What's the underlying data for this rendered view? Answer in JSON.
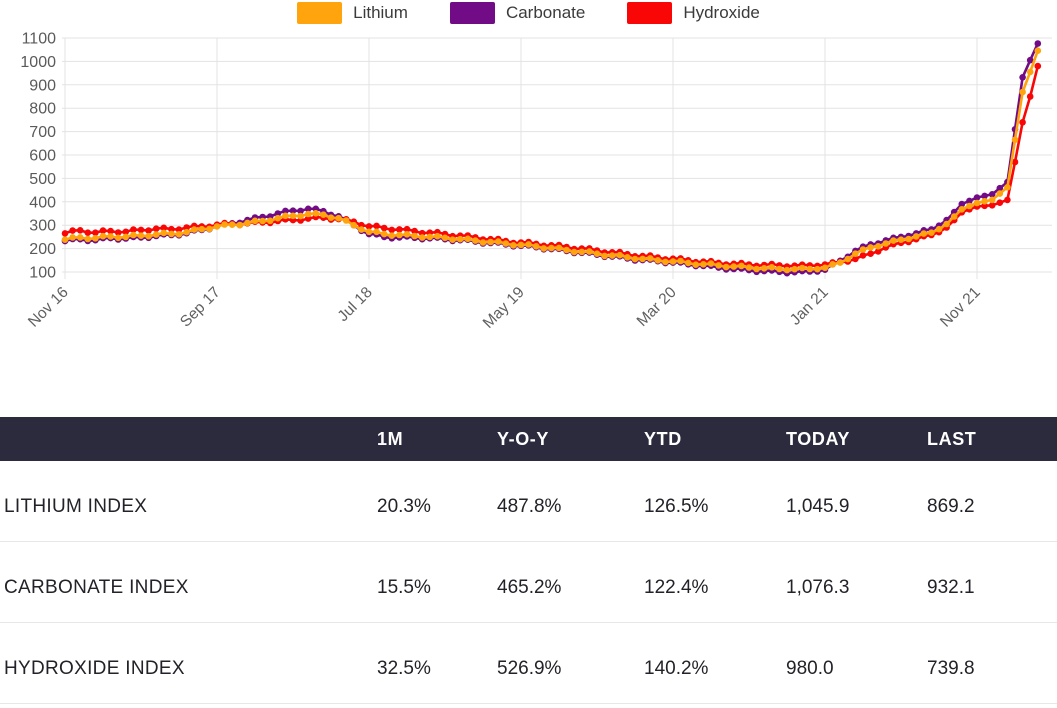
{
  "chart_data": {
    "type": "line",
    "title": "",
    "xlabel": "",
    "ylabel": "",
    "ylim": [
      100,
      1100
    ],
    "y_ticks": [
      100,
      200,
      300,
      400,
      500,
      600,
      700,
      800,
      900,
      1000,
      1100
    ],
    "x_tick_labels": [
      "Nov 16",
      "Sep 17",
      "Jul 18",
      "May 19",
      "Mar 20",
      "Jan 21",
      "Nov 21"
    ],
    "x_ticks_at_index": [
      0,
      20,
      40,
      60,
      80,
      100,
      120
    ],
    "x_unit": "semi-monthly samples from Nov 2016 to Mar 2022",
    "grid": true,
    "legend_position": "top-center",
    "marker": "circle",
    "series": [
      {
        "name": "Lithium",
        "color": "#FFA40D",
        "values": [
          238,
          248,
          248,
          241,
          244,
          253,
          252,
          246,
          250,
          258,
          255,
          253,
          260,
          267,
          263,
          261,
          270,
          281,
          283,
          284,
          295,
          303,
          302,
          301,
          310,
          319,
          318,
          319,
          330,
          340,
          340,
          339,
          348,
          351,
          345,
          332,
          330,
          320,
          300,
          281,
          272,
          272,
          262,
          255,
          258,
          261,
          254,
          247,
          250,
          253,
          246,
          238,
          240,
          242,
          234,
          226,
          228,
          230,
          222,
          214,
          216,
          218,
          210,
          201,
          202,
          203,
          194,
          185,
          186,
          187,
          178,
          169,
          170,
          172,
          163,
          155,
          156,
          158,
          150,
          143,
          145,
          147,
          139,
          131,
          133,
          136,
          128,
          121,
          123,
          126,
          119,
          113,
          116,
          120,
          113,
          108,
          112,
          117,
          113,
          112,
          118,
          133,
          140,
          155,
          178,
          196,
          205,
          210,
          222,
          234,
          238,
          241,
          252,
          264,
          268,
          283,
          305,
          337,
          368,
          382,
          395,
          402,
          408,
          435,
          462,
          665,
          869.2,
          955,
          1045.9
        ]
      },
      {
        "name": "Carbonate",
        "color": "#720B86",
        "values": [
          232,
          241,
          240,
          233,
          236,
          245,
          245,
          239,
          243,
          250,
          248,
          246,
          254,
          261,
          258,
          257,
          266,
          278,
          280,
          283,
          296,
          307,
          308,
          310,
          322,
          333,
          335,
          337,
          350,
          361,
          362,
          361,
          370,
          370,
          360,
          344,
          338,
          324,
          300,
          276,
          262,
          261,
          250,
          244,
          248,
          252,
          246,
          240,
          244,
          247,
          240,
          233,
          236,
          238,
          230,
          222,
          224,
          226,
          218,
          210,
          212,
          214,
          206,
          197,
          198,
          199,
          190,
          181,
          182,
          183,
          174,
          165,
          166,
          167,
          158,
          149,
          151,
          153,
          146,
          138,
          140,
          141,
          133,
          125,
          126,
          127,
          119,
          111,
          113,
          115,
          108,
          101,
          104,
          107,
          101,
          95,
          99,
          104,
          102,
          102,
          110,
          133,
          148,
          165,
          190,
          208,
          218,
          222,
          235,
          246,
          250,
          254,
          265,
          278,
          282,
          298,
          322,
          356,
          390,
          404,
          418,
          425,
          432,
          458,
          484,
          710,
          932.1,
          1005,
          1076.3
        ]
      },
      {
        "name": "Hydroxide",
        "color": "#F90606",
        "values": [
          265,
          277,
          278,
          268,
          268,
          277,
          275,
          269,
          272,
          281,
          280,
          277,
          285,
          289,
          283,
          281,
          290,
          297,
          295,
          293,
          302,
          309,
          305,
          301,
          308,
          315,
          312,
          310,
          318,
          325,
          322,
          320,
          328,
          335,
          332,
          324,
          326,
          325,
          315,
          300,
          295,
          297,
          288,
          280,
          282,
          283,
          275,
          266,
          268,
          270,
          262,
          253,
          255,
          256,
          248,
          239,
          240,
          241,
          232,
          224,
          226,
          228,
          220,
          212,
          214,
          215,
          207,
          198,
          200,
          201,
          192,
          183,
          184,
          185,
          176,
          167,
          168,
          170,
          162,
          154,
          157,
          158,
          150,
          142,
          144,
          146,
          139,
          132,
          135,
          138,
          132,
          126,
          130,
          134,
          128,
          123,
          127,
          131,
          128,
          126,
          132,
          141,
          142,
          145,
          156,
          171,
          178,
          188,
          205,
          219,
          225,
          228,
          240,
          253,
          258,
          270,
          290,
          322,
          355,
          368,
          380,
          383,
          385,
          396,
          408,
          570,
          739.8,
          850,
          980.0
        ]
      }
    ]
  },
  "table": {
    "headers": [
      "",
      "1M",
      "Y-O-Y",
      "YTD",
      "TODAY",
      "LAST"
    ],
    "header_bg": "#2B2B3D",
    "rows": [
      {
        "label": "LITHIUM INDEX",
        "cells": [
          "20.3%",
          "487.8%",
          "126.5%",
          "1,045.9",
          "869.2"
        ]
      },
      {
        "label": "CARBONATE INDEX",
        "cells": [
          "15.5%",
          "465.2%",
          "122.4%",
          "1,076.3",
          "932.1"
        ]
      },
      {
        "label": "HYDROXIDE INDEX",
        "cells": [
          "32.5%",
          "526.9%",
          "140.2%",
          "980.0",
          "739.8"
        ]
      }
    ]
  },
  "colors": {
    "grid": "#E3E3E3",
    "axis_text": "#606060",
    "row_border": "#E7E7E7",
    "header_text": "#FFFFFF"
  }
}
